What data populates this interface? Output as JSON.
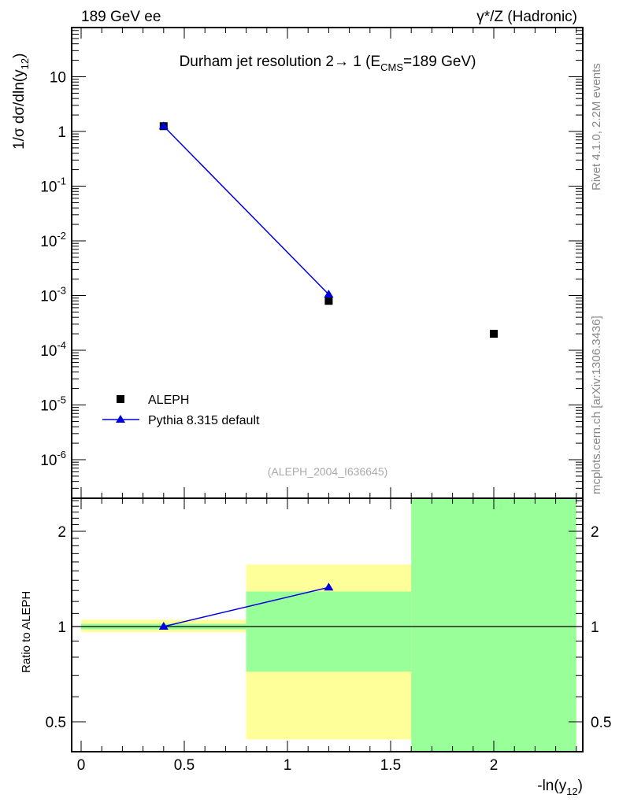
{
  "header": {
    "left": "189 GeV ee",
    "right": "γ*/Z (Hadronic)"
  },
  "side": {
    "rivet": "Rivet 4.1.0,  2.2M events",
    "mcplots": "mcplots.cern.ch [arXiv:1306.3436]"
  },
  "chart_data": [
    {
      "type": "scatter",
      "title": "Durham jet resolution 2→ 1 (E_CMS=189 GeV)",
      "title_parts": {
        "pre": "Durham jet resolution 2→  1 (E",
        "sub": "CMS",
        "post": "=189 GeV)"
      },
      "ylabel": "1/σ  dσ/dln(y_12)",
      "ylabel_parts": {
        "pre": "1/σ  dσ/dln(y",
        "sub": "12",
        "post": ")"
      },
      "yscale": "log",
      "ylim": [
        1.7e-07,
        78
      ],
      "xlim": [
        -0.046,
        2.43
      ],
      "ytick_labels": [
        {
          "v": 10,
          "t": "10"
        },
        {
          "v": 1,
          "t": "1"
        },
        {
          "v": 0.1,
          "t": "-1"
        },
        {
          "v": 0.01,
          "t": "-2"
        },
        {
          "v": 0.001,
          "t": "-3"
        },
        {
          "v": 0.0001,
          "t": "-4"
        },
        {
          "v": 1e-05,
          "t": "-5"
        },
        {
          "v": 1e-06,
          "t": "-6"
        }
      ],
      "legend_placement": "bottom-left",
      "series": [
        {
          "name": "ALEPH",
          "marker": "square",
          "color": "#000000",
          "x": [
            0.4,
            1.2,
            2.0
          ],
          "y": [
            1.25,
            0.0008,
            0.0002
          ]
        },
        {
          "name": "Pythia 8.315 default",
          "marker": "triangle",
          "color": "#0000dd",
          "x": [
            0.4,
            1.2
          ],
          "y": [
            1.25,
            0.00105
          ]
        }
      ],
      "annotation": "(ALEPH_2004_I636645)"
    },
    {
      "type": "line",
      "ylabel": "Ratio to ALEPH",
      "xlabel": "-ln(y_12)",
      "xlabel_parts": {
        "pre": "-ln(y",
        "sub": "12",
        "post": ")"
      },
      "yscale": "log",
      "ylim": [
        0.4,
        2.54
      ],
      "xticks": [
        0,
        0.5,
        1,
        1.5,
        2
      ],
      "xtick_labels": [
        "0",
        "0.5",
        "1",
        "1.5",
        "2"
      ],
      "yticks": [
        0.5,
        1,
        2
      ],
      "ytick_labels": [
        "0.5",
        "1",
        "2"
      ],
      "bands": [
        {
          "x0": 0,
          "x1": 0.8,
          "yellow": [
            0.96,
            1.05
          ],
          "green": [
            0.98,
            1.02
          ]
        },
        {
          "x0": 0.8,
          "x1": 1.6,
          "yellow": [
            0.44,
            1.57
          ],
          "green": [
            0.72,
            1.29
          ]
        },
        {
          "x0": 1.6,
          "x1": 2.4,
          "yellow": [
            0.4,
            2.54
          ],
          "green": [
            0.4,
            2.54
          ]
        }
      ],
      "series": [
        {
          "name": "Pythia 8.315 default",
          "x": [
            0.4,
            1.2
          ],
          "y": [
            1.0,
            1.33
          ]
        }
      ]
    }
  ]
}
